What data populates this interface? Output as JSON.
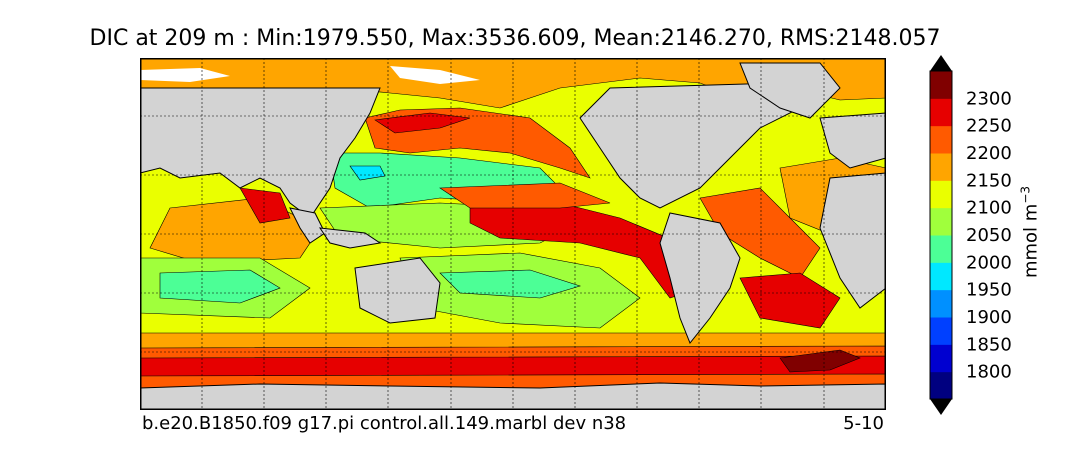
{
  "title": "DIC at 209 m : Min:1979.550, Max:3536.609, Mean:2146.270, RMS:2148.057",
  "footer": {
    "case_name": "b.e20.B1850.f09 g17.pi control.all.149.marbl dev n38",
    "years": "5-10"
  },
  "map": {
    "land_color": "#d3d3d3",
    "missing_color": "#ffffff",
    "graticule": "dashed"
  },
  "colorbar": {
    "units_html": "mmol m<tspan baseline-shift=\"super\" font-size=\"12\">−3</tspan>",
    "units": "mmol m−3",
    "ticks": [
      "1800",
      "1850",
      "1900",
      "1950",
      "2000",
      "2050",
      "2100",
      "2150",
      "2200",
      "2250",
      "2300"
    ],
    "colors": [
      "#000080",
      "#0000d0",
      "#0040ff",
      "#0090ff",
      "#00e8ff",
      "#4cff96",
      "#a0ff3c",
      "#eaff00",
      "#ffa500",
      "#ff5a00",
      "#e60000",
      "#800000"
    ],
    "extend": "both"
  }
}
